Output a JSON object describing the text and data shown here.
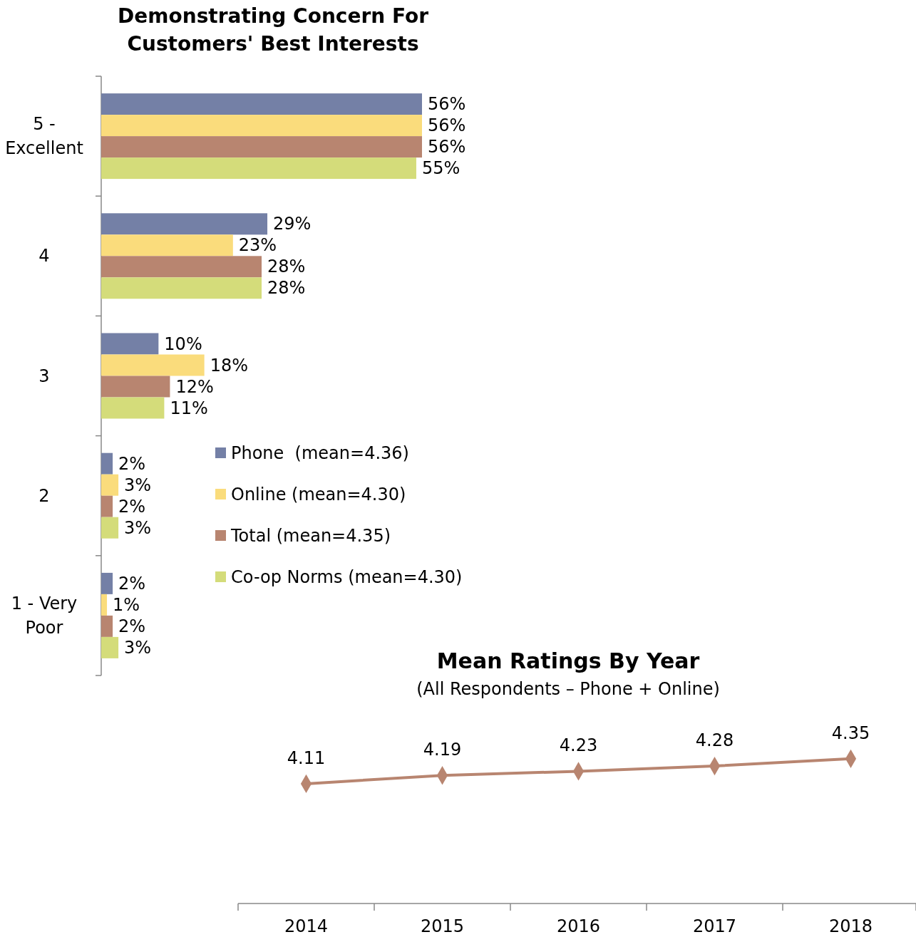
{
  "chart_data": [
    {
      "type": "bar",
      "orientation": "horizontal",
      "title": "Demonstrating Concern For Customers' Best Interests",
      "categories": [
        "5 - Excellent",
        "4",
        "3",
        "2",
        "1 - Very Poor"
      ],
      "legend": "bottom right",
      "series": [
        {
          "name": "Phone  (mean=4.36)",
          "color": "#7480a6",
          "values": [
            56,
            29,
            10,
            2,
            2
          ],
          "value_labels": [
            "56%",
            "29%",
            "10%",
            "2%",
            "2%"
          ]
        },
        {
          "name": "Online (mean=4.30)",
          "color": "#fadc7c",
          "values": [
            56,
            23,
            18,
            3,
            1
          ],
          "value_labels": [
            "56%",
            "23%",
            "18%",
            "3%",
            "1%"
          ]
        },
        {
          "name": "Total (mean=4.35)",
          "color": "#b88570",
          "values": [
            56,
            28,
            12,
            2,
            2
          ],
          "value_labels": [
            "56%",
            "28%",
            "12%",
            "2%",
            "2%"
          ]
        },
        {
          "name": "Co-op Norms (mean=4.30)",
          "color": "#d4dc7a",
          "values": [
            55,
            28,
            11,
            3,
            3
          ],
          "value_labels": [
            "55%",
            "28%",
            "11%",
            "3%",
            "3%"
          ]
        }
      ]
    },
    {
      "type": "line",
      "title": "Mean Ratings By Year",
      "subtitle": "(All Respondents – Phone + Online)",
      "categories": [
        "2014",
        "2015",
        "2016",
        "2017",
        "2018"
      ],
      "marker": "diamond",
      "data_labels": true,
      "series": [
        {
          "color": "#b88570",
          "values": [
            4.11,
            4.19,
            4.23,
            4.28,
            4.35
          ]
        }
      ]
    }
  ]
}
